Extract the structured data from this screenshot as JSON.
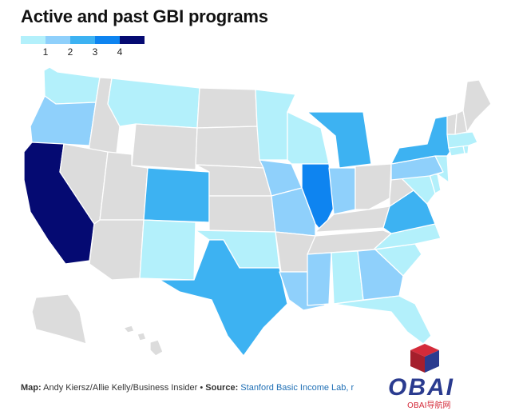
{
  "title": "Active and past GBI programs",
  "legend": {
    "colors": [
      "#b3f0fb",
      "#8fd0fb",
      "#3db2f2",
      "#0e84f0",
      "#050a72"
    ],
    "ticks": [
      "1",
      "2",
      "3",
      "4"
    ]
  },
  "map": {
    "no_program_color": "#dcdcdc",
    "states": [
      {
        "name": "Washington",
        "level": 1
      },
      {
        "name": "Oregon",
        "level": 2
      },
      {
        "name": "California",
        "level": 5
      },
      {
        "name": "Idaho",
        "level": 0
      },
      {
        "name": "Nevada",
        "level": 0
      },
      {
        "name": "Montana",
        "level": 1
      },
      {
        "name": "Wyoming",
        "level": 0
      },
      {
        "name": "Utah",
        "level": 0
      },
      {
        "name": "Arizona",
        "level": 0
      },
      {
        "name": "Colorado",
        "level": 3
      },
      {
        "name": "New Mexico",
        "level": 1
      },
      {
        "name": "North Dakota",
        "level": 0
      },
      {
        "name": "South Dakota",
        "level": 0
      },
      {
        "name": "Nebraska",
        "level": 0
      },
      {
        "name": "Kansas",
        "level": 0
      },
      {
        "name": "Oklahoma",
        "level": 1
      },
      {
        "name": "Texas",
        "level": 3
      },
      {
        "name": "Minnesota",
        "level": 1
      },
      {
        "name": "Iowa",
        "level": 2
      },
      {
        "name": "Missouri",
        "level": 2
      },
      {
        "name": "Arkansas",
        "level": 0
      },
      {
        "name": "Louisiana",
        "level": 2
      },
      {
        "name": "Wisconsin",
        "level": 1
      },
      {
        "name": "Illinois",
        "level": 4
      },
      {
        "name": "Michigan",
        "level": 3
      },
      {
        "name": "Indiana",
        "level": 2
      },
      {
        "name": "Ohio",
        "level": 0
      },
      {
        "name": "Kentucky",
        "level": 0
      },
      {
        "name": "Tennessee",
        "level": 0
      },
      {
        "name": "Mississippi",
        "level": 2
      },
      {
        "name": "Alabama",
        "level": 1
      },
      {
        "name": "Georgia",
        "level": 2
      },
      {
        "name": "Florida",
        "level": 1
      },
      {
        "name": "South Carolina",
        "level": 1
      },
      {
        "name": "North Carolina",
        "level": 1
      },
      {
        "name": "Virginia",
        "level": 3
      },
      {
        "name": "West Virginia",
        "level": 0
      },
      {
        "name": "Maryland",
        "level": 1
      },
      {
        "name": "Delaware",
        "level": 1
      },
      {
        "name": "Pennsylvania",
        "level": 2
      },
      {
        "name": "New Jersey",
        "level": 1
      },
      {
        "name": "New York",
        "level": 3
      },
      {
        "name": "Connecticut",
        "level": 1
      },
      {
        "name": "Rhode Island",
        "level": 1
      },
      {
        "name": "Massachusetts",
        "level": 1
      },
      {
        "name": "Vermont",
        "level": 0
      },
      {
        "name": "New Hampshire",
        "level": 0
      },
      {
        "name": "Maine",
        "level": 0
      },
      {
        "name": "Alaska",
        "level": 0
      },
      {
        "name": "Hawaii",
        "level": 0
      }
    ]
  },
  "caption": {
    "map_label": "Map:",
    "credit": " Andy Kiersz/Allie Kelly/Business Insider • ",
    "source_label": "Source:",
    "source_link": " Stanford Basic Income Lab, r"
  },
  "logo": {
    "text": "OBAI",
    "subtext": "OBAI导航网",
    "colors": [
      "#d42b3a",
      "#2a3b8f"
    ]
  }
}
